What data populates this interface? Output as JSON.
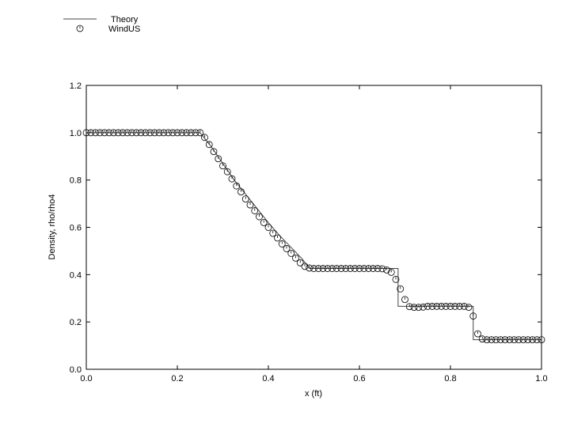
{
  "chart_data": {
    "type": "line",
    "title": "",
    "xlabel": "x (ft)",
    "ylabel": "Density, rho/rho4",
    "xlim": [
      0,
      1
    ],
    "ylim": [
      0,
      1.2
    ],
    "xticks": [
      "0.0",
      "0.2",
      "0.4",
      "0.6",
      "0.8",
      "1.0"
    ],
    "yticks": [
      "0.0",
      "0.2",
      "0.4",
      "0.6",
      "0.8",
      "1.0",
      "1.2"
    ],
    "grid": false,
    "legend": "top-left",
    "series": [
      {
        "name": "Theory",
        "style": "line",
        "color": "#444444",
        "x": [
          0,
          0.25,
          0.275,
          0.3,
          0.325,
          0.35,
          0.375,
          0.4,
          0.425,
          0.45,
          0.475,
          0.49,
          0.685,
          0.685,
          0.85,
          0.85,
          1.0
        ],
        "y": [
          1,
          1,
          0.94,
          0.87,
          0.8,
          0.74,
          0.68,
          0.62,
          0.565,
          0.515,
          0.465,
          0.426,
          0.426,
          0.266,
          0.266,
          0.125,
          0.125
        ]
      },
      {
        "name": "WindUS",
        "style": "marker",
        "color": "#000000",
        "x": [
          0,
          0.01,
          0.02,
          0.03,
          0.04,
          0.05,
          0.06,
          0.07,
          0.08,
          0.09,
          0.1,
          0.11,
          0.12,
          0.13,
          0.14,
          0.15,
          0.16,
          0.17,
          0.18,
          0.19,
          0.2,
          0.21,
          0.22,
          0.23,
          0.24,
          0.25,
          0.26,
          0.27,
          0.28,
          0.29,
          0.3,
          0.31,
          0.32,
          0.33,
          0.34,
          0.35,
          0.36,
          0.37,
          0.38,
          0.39,
          0.4,
          0.41,
          0.42,
          0.43,
          0.44,
          0.45,
          0.46,
          0.47,
          0.48,
          0.49,
          0.5,
          0.51,
          0.52,
          0.53,
          0.54,
          0.55,
          0.56,
          0.57,
          0.58,
          0.59,
          0.6,
          0.61,
          0.62,
          0.63,
          0.64,
          0.65,
          0.66,
          0.67,
          0.68,
          0.69,
          0.7,
          0.71,
          0.72,
          0.73,
          0.74,
          0.75,
          0.76,
          0.77,
          0.78,
          0.79,
          0.8,
          0.81,
          0.82,
          0.83,
          0.84,
          0.85,
          0.86,
          0.87,
          0.88,
          0.89,
          0.9,
          0.91,
          0.92,
          0.93,
          0.94,
          0.95,
          0.96,
          0.97,
          0.98,
          0.99,
          1.0
        ],
        "y": [
          1,
          1,
          1,
          1,
          1,
          1,
          1,
          1,
          1,
          1,
          1,
          1,
          1,
          1,
          1,
          1,
          1,
          1,
          1,
          1,
          1,
          1,
          1,
          1,
          1,
          1,
          0.98,
          0.95,
          0.92,
          0.89,
          0.86,
          0.835,
          0.805,
          0.775,
          0.75,
          0.72,
          0.695,
          0.67,
          0.645,
          0.62,
          0.6,
          0.575,
          0.555,
          0.53,
          0.51,
          0.49,
          0.47,
          0.45,
          0.435,
          0.428,
          0.426,
          0.426,
          0.426,
          0.426,
          0.426,
          0.426,
          0.426,
          0.426,
          0.426,
          0.426,
          0.426,
          0.426,
          0.426,
          0.426,
          0.426,
          0.425,
          0.42,
          0.41,
          0.38,
          0.34,
          0.295,
          0.265,
          0.262,
          0.262,
          0.263,
          0.266,
          0.266,
          0.266,
          0.266,
          0.266,
          0.266,
          0.266,
          0.266,
          0.266,
          0.262,
          0.225,
          0.15,
          0.128,
          0.125,
          0.125,
          0.125,
          0.125,
          0.125,
          0.125,
          0.125,
          0.125,
          0.125,
          0.125,
          0.125,
          0.125,
          0.125
        ]
      }
    ]
  }
}
